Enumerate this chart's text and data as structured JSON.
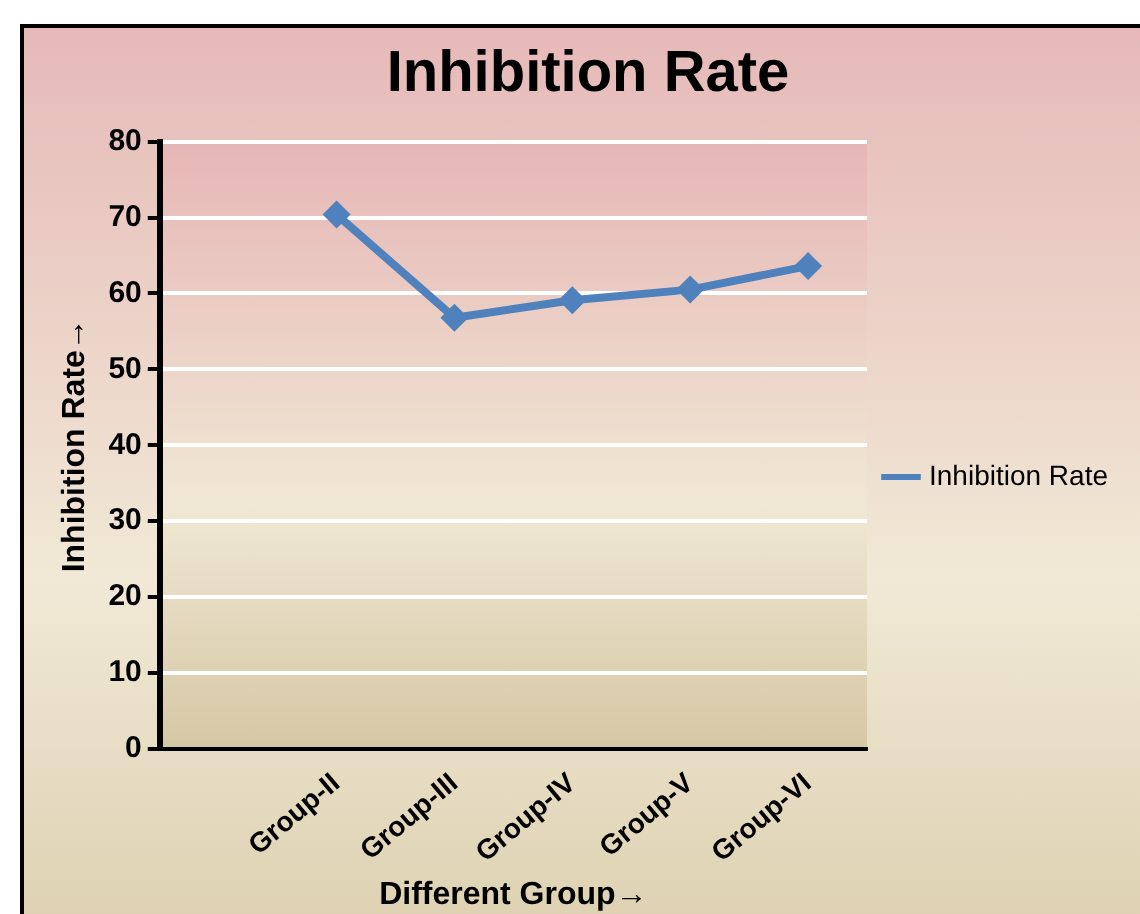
{
  "chart_data": {
    "type": "line",
    "title": "Inhibition Rate",
    "xlabel": "Different Group→",
    "ylabel": "Inhibition Rate→",
    "categories": [
      null,
      "Group-II",
      "Group-III",
      "Group-IV",
      "Group-V",
      "Group-VI"
    ],
    "series": [
      {
        "name": "Inhibition Rate",
        "color": "#4f81bd",
        "values": [
          null,
          70.4,
          56.8,
          59.1,
          60.5,
          63.6
        ]
      }
    ],
    "ylim": [
      0,
      80
    ],
    "yticks": [
      0,
      10,
      20,
      30,
      40,
      50,
      60,
      70,
      80
    ],
    "grid": "y",
    "legend": "right",
    "marker": "diamond",
    "line_style": "solid"
  }
}
